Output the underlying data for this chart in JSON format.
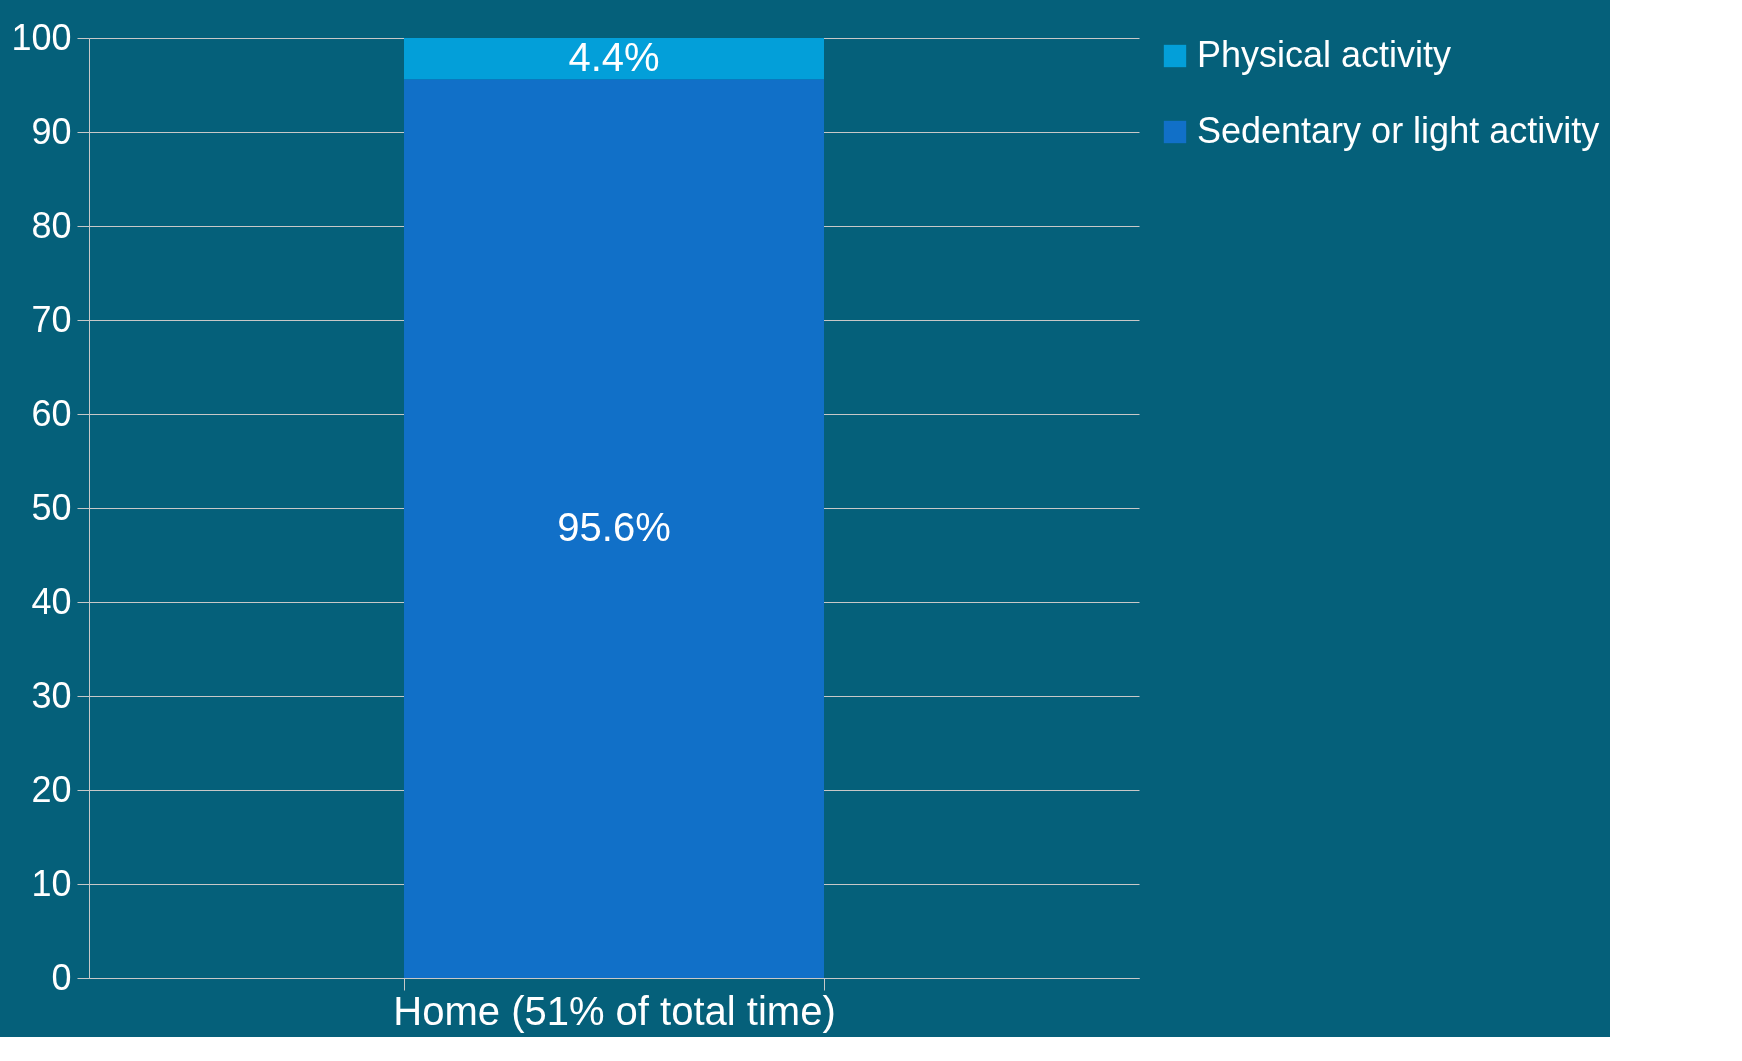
{
  "chart_data": {
    "type": "bar",
    "stacked": true,
    "categories": [
      "Home (51% of total time)"
    ],
    "series": [
      {
        "name": "Sedentary or light activity",
        "color": "#1170c8",
        "values": [
          95.6
        ],
        "value_labels": [
          "95.6%"
        ]
      },
      {
        "name": "Physical activity",
        "color": "#039fd9",
        "values": [
          4.4
        ],
        "value_labels": [
          "4.4%"
        ]
      }
    ],
    "ylim": [
      0,
      100
    ],
    "yticks": [
      0,
      10,
      20,
      30,
      40,
      50,
      60,
      70,
      80,
      90,
      100
    ],
    "grid": "y",
    "legend": "right"
  }
}
